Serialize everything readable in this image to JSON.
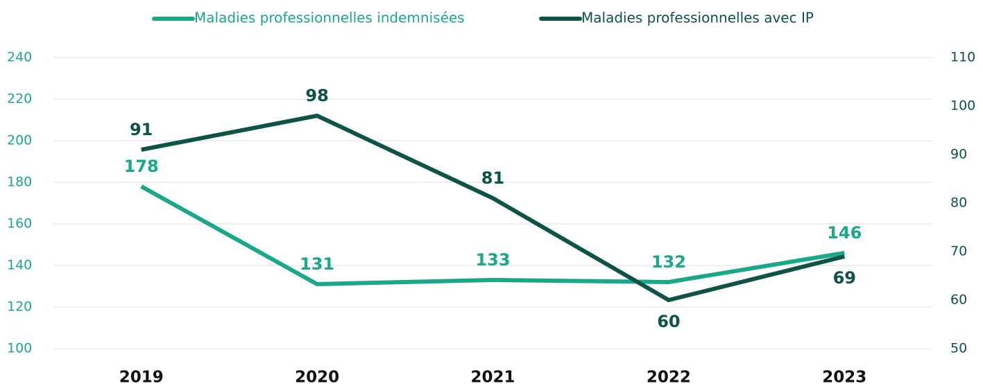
{
  "chart_data": {
    "type": "line",
    "categories": [
      "2019",
      "2020",
      "2021",
      "2022",
      "2023"
    ],
    "series": [
      {
        "name": "Maladies professionnelles indemnisées",
        "color": "#1aa88b",
        "values": [
          178,
          131,
          133,
          132,
          146
        ]
      },
      {
        "name": "Maladies professionnelles avec IP",
        "color": "#0d5447",
        "values": [
          91,
          98,
          81,
          60,
          69
        ],
        "axis": "y2"
      }
    ],
    "ylim": [
      100,
      240
    ],
    "yticks": [
      100,
      120,
      140,
      160,
      180,
      200,
      220,
      240
    ],
    "y2lim": [
      50,
      110
    ],
    "y2ticks": [
      50,
      60,
      70,
      80,
      90,
      100,
      110
    ],
    "grid": true,
    "legend": "top"
  }
}
